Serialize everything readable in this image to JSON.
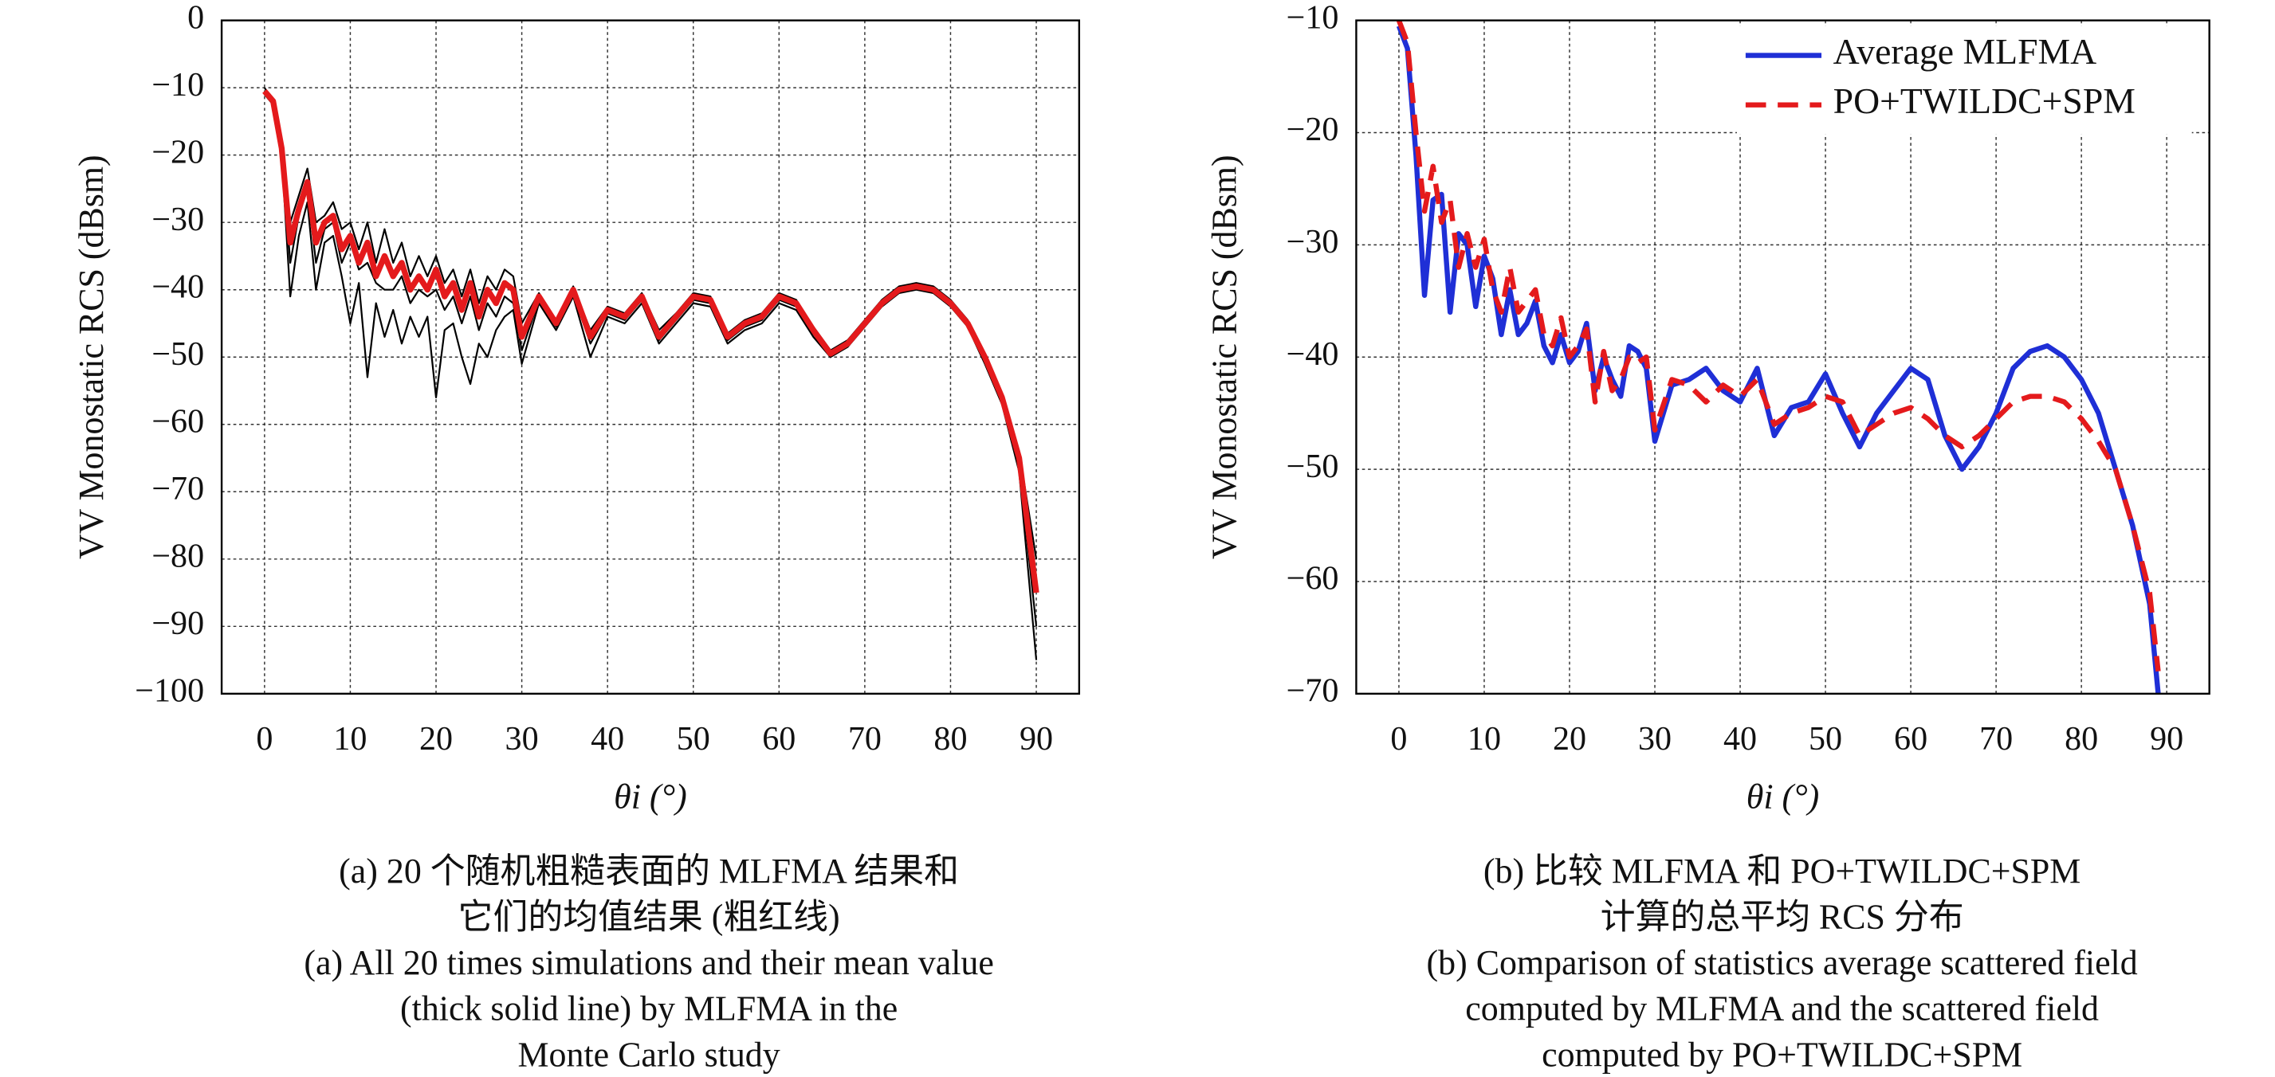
{
  "chart_data": [
    {
      "type": "line",
      "ylabel": "VV Monostatic RCS (dBsm)",
      "xlabel": "θi (°)",
      "caption": [
        "(a) 20 个随机粗糙表面的 MLFMA 结果和",
        "它们的均值结果 (粗红线)",
        "(a) All 20 times simulations and their mean value",
        "(thick solid line) by MLFMA in the",
        "Monte Carlo study"
      ],
      "xlim": [
        -5,
        95
      ],
      "xticks": [
        0,
        10,
        20,
        30,
        40,
        50,
        60,
        70,
        80,
        90
      ],
      "ylim": [
        -100,
        0
      ],
      "yticks": [
        0,
        {
          "value": -10,
          "label": "−10"
        },
        {
          "value": -20,
          "label": "−20"
        },
        {
          "value": -30,
          "label": "−30"
        },
        {
          "value": -40,
          "label": "−40"
        },
        {
          "value": -50,
          "label": "−50"
        },
        {
          "value": -60,
          "label": "−60"
        },
        {
          "value": -70,
          "label": "−70"
        },
        {
          "value": -80,
          "label": "−80"
        },
        {
          "value": -90,
          "label": "−90"
        },
        {
          "value": -100,
          "label": "−100"
        }
      ],
      "grid": true,
      "x": [
        0,
        1,
        2,
        3,
        4,
        5,
        6,
        7,
        8,
        9,
        10,
        11,
        12,
        13,
        14,
        15,
        16,
        17,
        18,
        19,
        20,
        21,
        22,
        23,
        24,
        25,
        26,
        27,
        28,
        29,
        30,
        32,
        34,
        36,
        38,
        40,
        42,
        44,
        46,
        48,
        50,
        52,
        54,
        56,
        58,
        60,
        62,
        64,
        66,
        68,
        70,
        72,
        74,
        76,
        78,
        80,
        82,
        84,
        86,
        88,
        90
      ],
      "series": [
        {
          "color": "#000000",
          "linewidth": 1.2,
          "values": [
            -10,
            -12,
            -18,
            -30,
            -26,
            -22,
            -30,
            -29,
            -27,
            -31,
            -30,
            -34,
            -30,
            -36,
            -31,
            -36,
            -33,
            -38,
            -35,
            -38,
            -35,
            -39,
            -37,
            -41,
            -37,
            -42,
            -38,
            -40,
            -37,
            -38,
            -45,
            -40.5,
            -44.5,
            -39.5,
            -46,
            -42.5,
            -43.5,
            -40.5,
            -46,
            -43.5,
            -40.5,
            -41,
            -46.5,
            -44.5,
            -43.5,
            -40.5,
            -41.5,
            -45.5,
            -49,
            -47.5,
            -44.5,
            -41.5,
            -39.5,
            -39,
            -39.5,
            -41.5,
            -44.5,
            -49.5,
            -55.5,
            -64,
            -80
          ]
        },
        {
          "color": "#000000",
          "linewidth": 1.2,
          "values": [
            -11,
            -12.5,
            -20,
            -41,
            -32,
            -27,
            -40,
            -33,
            -32,
            -38,
            -45,
            -39,
            -53,
            -42,
            -47,
            -43,
            -48,
            -44,
            -47,
            -44,
            -56,
            -46,
            -45,
            -50,
            -54,
            -48,
            -50,
            -46,
            -44,
            -43,
            -51,
            -42,
            -46,
            -41,
            -50,
            -44,
            -45,
            -42,
            -48,
            -45,
            -42,
            -42.5,
            -48,
            -46,
            -45,
            -42,
            -43,
            -47,
            -50,
            -48.5,
            -45.5,
            -42.5,
            -40.5,
            -40,
            -40.5,
            -42.5,
            -45.5,
            -51,
            -57,
            -67,
            -95
          ]
        },
        {
          "color": "#000000",
          "linewidth": 1.2,
          "values": [
            -10.5,
            -12,
            -19,
            -36,
            -29,
            -25,
            -36,
            -31,
            -30,
            -36,
            -33,
            -37,
            -36,
            -39,
            -40,
            -40,
            -38,
            -42,
            -40,
            -41,
            -40,
            -43,
            -41,
            -45,
            -41,
            -46,
            -42,
            -44,
            -41,
            -42,
            -49,
            -41.5,
            -45.5,
            -40.5,
            -48,
            -43.5,
            -44.5,
            -41.5,
            -47.5,
            -44.5,
            -41.5,
            -42,
            -47.5,
            -45.5,
            -44.5,
            -41.5,
            -42.5,
            -46.5,
            -50,
            -48,
            -45,
            -42,
            -40,
            -39.5,
            -40,
            -42,
            -45,
            -50.5,
            -56.5,
            -66,
            -90
          ]
        },
        {
          "color": "#e41a1c",
          "linewidth": 4,
          "values": [
            -10.5,
            -12,
            -19,
            -33,
            -28,
            -24,
            -33,
            -30,
            -29,
            -34,
            -32,
            -36,
            -33,
            -38,
            -35,
            -38,
            -36,
            -40,
            -38,
            -40,
            -37,
            -41,
            -39,
            -43,
            -39,
            -44,
            -40,
            -42,
            -39,
            -40,
            -47,
            -41,
            -45,
            -40,
            -47,
            -43,
            -44,
            -41,
            -47,
            -44,
            -41,
            -41.5,
            -47,
            -45,
            -44,
            -41,
            -42,
            -46,
            -49.5,
            -48,
            -45,
            -42,
            -40,
            -39.5,
            -40,
            -42,
            -45,
            -50,
            -56,
            -65,
            -85
          ]
        }
      ]
    },
    {
      "type": "line",
      "ylabel": "VV Monostatic RCS (dBsm)",
      "xlabel": "θi (°)",
      "caption": [
        "(b) 比较 MLFMA 和 PO+TWILDC+SPM",
        "计算的总平均 RCS 分布",
        "(b) Comparison of statistics average scattered field",
        "computed by MLFMA and the scattered field",
        "computed by PO+TWILDC+SPM"
      ],
      "xlim": [
        -5,
        95
      ],
      "xticks": [
        0,
        10,
        20,
        30,
        40,
        50,
        60,
        70,
        80,
        90
      ],
      "ylim": [
        -70,
        -10
      ],
      "yticks": [
        {
          "value": -10,
          "label": "−10"
        },
        {
          "value": -20,
          "label": "−20"
        },
        {
          "value": -30,
          "label": "−30"
        },
        {
          "value": -40,
          "label": "−40"
        },
        {
          "value": -50,
          "label": "−50"
        },
        {
          "value": -60,
          "label": "−60"
        },
        {
          "value": -70,
          "label": "−70"
        }
      ],
      "grid": true,
      "legend": "upper right",
      "x": [
        0,
        1,
        2,
        3,
        4,
        5,
        6,
        7,
        8,
        9,
        10,
        11,
        12,
        13,
        14,
        15,
        16,
        17,
        18,
        19,
        20,
        21,
        22,
        23,
        24,
        25,
        26,
        27,
        28,
        29,
        30,
        32,
        34,
        36,
        38,
        40,
        42,
        44,
        46,
        48,
        50,
        52,
        54,
        56,
        58,
        60,
        62,
        64,
        66,
        68,
        70,
        72,
        74,
        76,
        78,
        80,
        82,
        84,
        86,
        88,
        89
      ],
      "series": [
        {
          "name": "Average MLFMA",
          "color": "#1f2fd6",
          "linewidth": 3.5,
          "values": [
            -10.5,
            -12.5,
            -22,
            -34.5,
            -26,
            -25.5,
            -36,
            -29,
            -30,
            -35.5,
            -31,
            -33,
            -38,
            -34,
            -38,
            -37,
            -35,
            -39,
            -40.5,
            -38,
            -40.5,
            -39.5,
            -37,
            -43,
            -40,
            -42,
            -43.5,
            -39,
            -39.5,
            -41,
            -47.5,
            -42.5,
            -42,
            -41,
            -43,
            -44,
            -41,
            -47,
            -44.5,
            -44,
            -41.5,
            -45,
            -48,
            -45,
            -43,
            -41,
            -42,
            -47,
            -50,
            -48,
            -45,
            -41,
            -39.5,
            -39,
            -40,
            -42,
            -45,
            -50,
            -55,
            -62,
            -70
          ]
        },
        {
          "name": "PO+TWILDC+SPM",
          "color": "#e41a1c",
          "linewidth": 3.5,
          "linestyle": "dashed",
          "values": [
            -10,
            -12,
            -20,
            -27,
            -23,
            -28,
            -26,
            -32,
            -29,
            -32,
            -29.5,
            -34,
            -36,
            -32,
            -36,
            -35,
            -34,
            -38,
            -39,
            -36.5,
            -40,
            -39,
            -37.5,
            -44,
            -39.5,
            -43,
            -42,
            -40,
            -40.5,
            -40,
            -46.5,
            -42,
            -42.5,
            -44,
            -42.5,
            -43.5,
            -42,
            -46,
            -45,
            -44.5,
            -43.5,
            -44,
            -47,
            -46,
            -45,
            -44.5,
            -45.5,
            -47,
            -48,
            -47,
            -45.5,
            -44,
            -43.5,
            -43.5,
            -44,
            -45.5,
            -47.5,
            -50,
            -55,
            -61,
            -68
          ]
        }
      ]
    }
  ]
}
